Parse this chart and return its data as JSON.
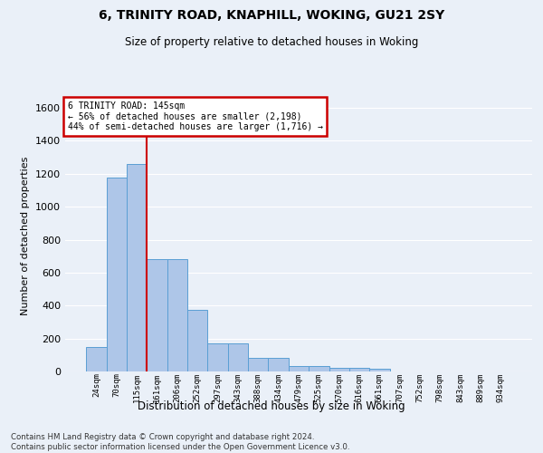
{
  "title": "6, TRINITY ROAD, KNAPHILL, WOKING, GU21 2SY",
  "subtitle": "Size of property relative to detached houses in Woking",
  "xlabel": "Distribution of detached houses by size in Woking",
  "ylabel": "Number of detached properties",
  "categories": [
    "24sqm",
    "70sqm",
    "115sqm",
    "161sqm",
    "206sqm",
    "252sqm",
    "297sqm",
    "343sqm",
    "388sqm",
    "434sqm",
    "479sqm",
    "525sqm",
    "570sqm",
    "616sqm",
    "661sqm",
    "707sqm",
    "752sqm",
    "798sqm",
    "843sqm",
    "889sqm",
    "934sqm"
  ],
  "values": [
    150,
    1175,
    1260,
    680,
    680,
    375,
    170,
    170,
    80,
    80,
    35,
    35,
    20,
    20,
    15,
    0,
    0,
    0,
    0,
    0,
    0
  ],
  "bar_color": "#aec6e8",
  "bar_edge_color": "#5a9fd4",
  "annotation_text_line1": "6 TRINITY ROAD: 145sqm",
  "annotation_text_line2": "← 56% of detached houses are smaller (2,198)",
  "annotation_text_line3": "44% of semi-detached houses are larger (1,716) →",
  "annotation_box_color": "#ffffff",
  "annotation_box_edge": "#cc0000",
  "vline_color": "#cc0000",
  "vline_x": 2.5,
  "footer1": "Contains HM Land Registry data © Crown copyright and database right 2024.",
  "footer2": "Contains public sector information licensed under the Open Government Licence v3.0.",
  "background_color": "#eaf0f8",
  "grid_color": "#ffffff",
  "ylim": [
    0,
    1650
  ],
  "yticks": [
    0,
    200,
    400,
    600,
    800,
    1000,
    1200,
    1400,
    1600
  ]
}
